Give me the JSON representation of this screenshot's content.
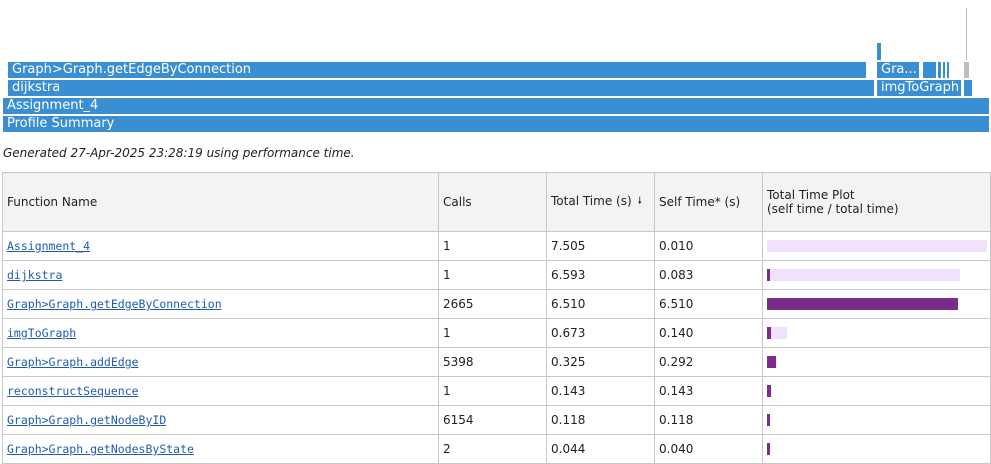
{
  "flame": {
    "top_bar": "Graph>Graph.getEdgeByConnection",
    "top_right_bar": "Gra...",
    "mid_bar": "dijkstra",
    "mid_right_bar": "imgToGraph",
    "assignment_bar": "Assignment_4",
    "summary_bar": "Profile Summary"
  },
  "generated_text": "Generated 27-Apr-2025 23:28:19 using performance time.",
  "table": {
    "headers": {
      "function": "Function Name",
      "calls": "Calls",
      "total_time": "Total Time (s)",
      "sort_icon": "🠗",
      "self_time": "Self Time* (s)",
      "plot_line1": "Total Time Plot",
      "plot_line2": "(self time / total time)"
    },
    "colors": {
      "total": "#f1e2fb",
      "self": "#7b2d8b"
    },
    "max_total": 7.505,
    "rows": [
      {
        "name": "Assignment_4",
        "calls": "1",
        "total": "7.505",
        "self": "0.010"
      },
      {
        "name": "dijkstra",
        "calls": "1",
        "total": "6.593",
        "self": "0.083"
      },
      {
        "name": "Graph>Graph.getEdgeByConnection",
        "calls": "2665",
        "total": "6.510",
        "self": "6.510"
      },
      {
        "name": "imgToGraph",
        "calls": "1",
        "total": "0.673",
        "self": "0.140"
      },
      {
        "name": "Graph>Graph.addEdge",
        "calls": "5398",
        "total": "0.325",
        "self": "0.292"
      },
      {
        "name": "reconstructSequence",
        "calls": "1",
        "total": "0.143",
        "self": "0.143"
      },
      {
        "name": "Graph>Graph.getNodeByID",
        "calls": "6154",
        "total": "0.118",
        "self": "0.118"
      },
      {
        "name": "Graph>Graph.getNodesByState",
        "calls": "2",
        "total": "0.044",
        "self": "0.040"
      }
    ]
  }
}
